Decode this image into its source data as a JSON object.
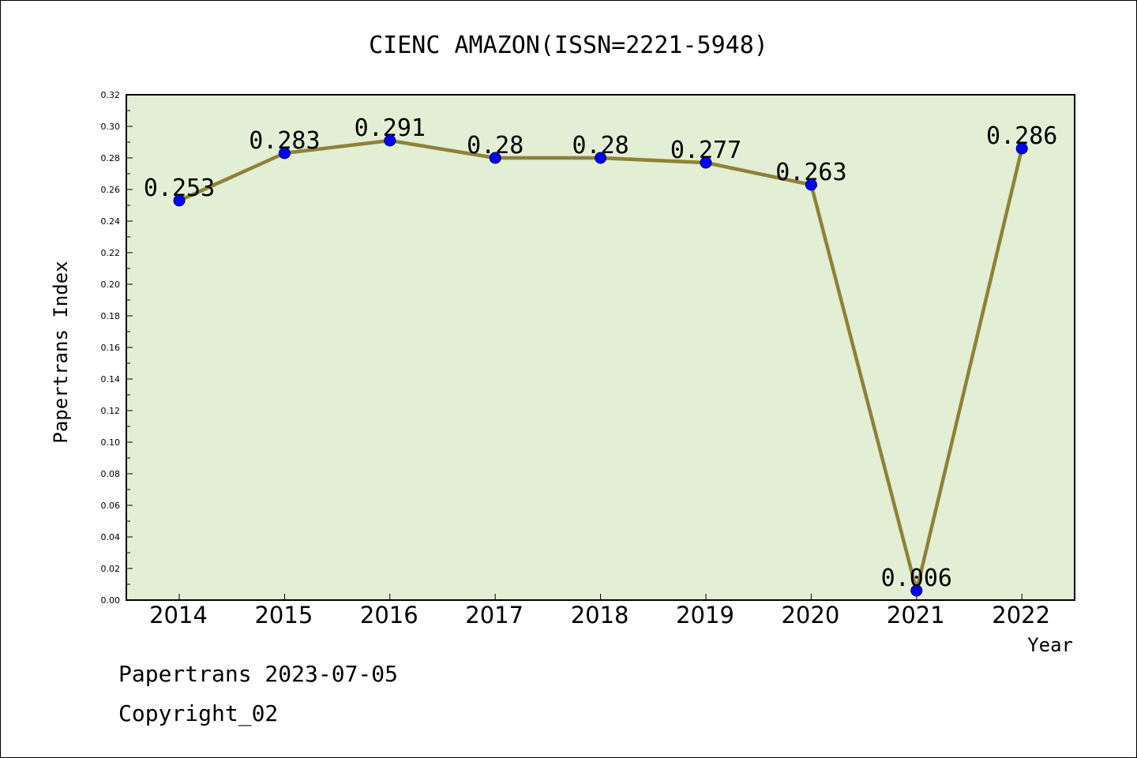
{
  "chart_data": {
    "type": "line",
    "title": "CIENC AMAZON(ISSN=2221-5948)",
    "xlabel": "Year",
    "ylabel": "Papertrans Index",
    "x": [
      "2014",
      "2015",
      "2016",
      "2017",
      "2018",
      "2019",
      "2020",
      "2021",
      "2022"
    ],
    "series": [
      {
        "values": [
          0.253,
          0.283,
          0.291,
          0.28,
          0.28,
          0.277,
          0.263,
          0.006,
          0.286
        ],
        "labels": [
          "0.253",
          "0.283",
          "0.291",
          "0.28",
          "0.28",
          "0.277",
          "0.263",
          "0.006",
          "0.286"
        ]
      }
    ],
    "ylim": [
      0,
      0.32
    ],
    "yticks": [
      "0.00",
      "0.02",
      "0.04",
      "0.06",
      "0.08",
      "0.10",
      "0.12",
      "0.14",
      "0.16",
      "0.18",
      "0.20",
      "0.22",
      "0.24",
      "0.26",
      "0.28",
      "0.30",
      "0.32"
    ],
    "grid": false,
    "legend": "none",
    "colors": {
      "plot_background": "#e2efd5",
      "line": "#8e8237",
      "marker": "#0000ff"
    }
  },
  "footer": {
    "line1": "Papertrans 2023-07-05",
    "line2": "Copyright_02"
  }
}
